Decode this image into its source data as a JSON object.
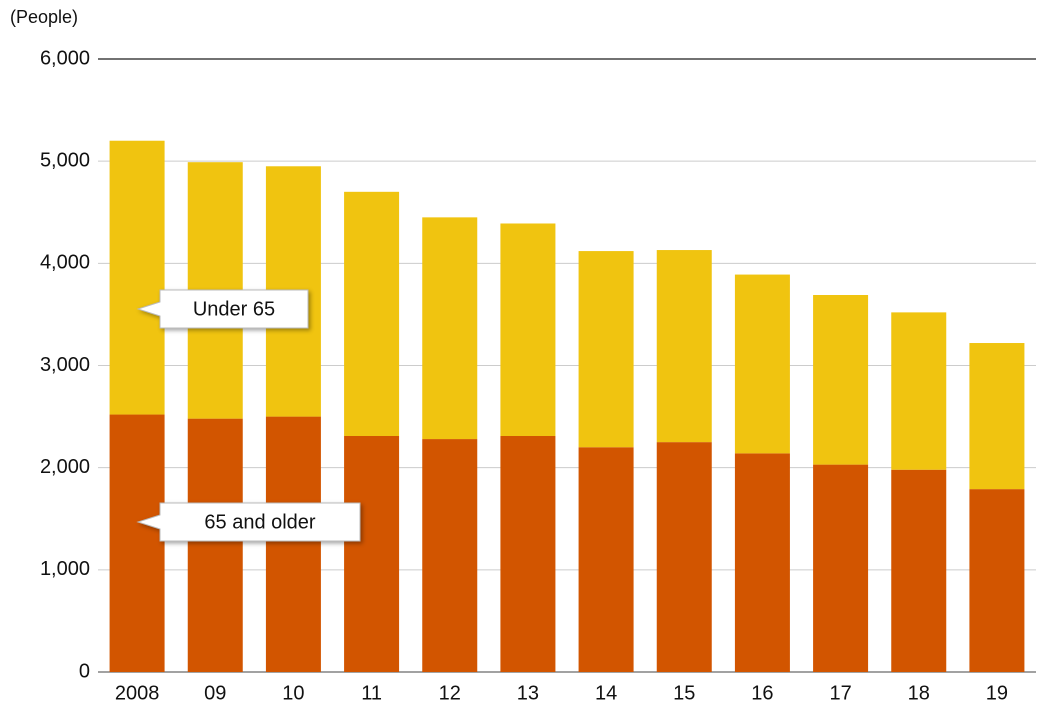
{
  "chart_data": {
    "type": "stacked_bar",
    "y_label": "(People)",
    "categories": [
      "2008",
      "09",
      "10",
      "11",
      "12",
      "13",
      "14",
      "15",
      "16",
      "17",
      "18",
      "19"
    ],
    "series": [
      {
        "name": "65 and older",
        "color": "#d25500",
        "values": [
          2520,
          2480,
          2500,
          2310,
          2280,
          2310,
          2200,
          2250,
          2140,
          2030,
          1980,
          1790
        ]
      },
      {
        "name": "Under 65",
        "color": "#f0c410",
        "values": [
          2680,
          2510,
          2450,
          2390,
          2170,
          2080,
          1920,
          1880,
          1750,
          1660,
          1540,
          1430
        ]
      }
    ],
    "ylim": [
      0,
      6000
    ],
    "yticks": [
      0,
      {
        "value": 1000,
        "label": "1,000"
      },
      {
        "value": 2000,
        "label": "2,000"
      },
      {
        "value": 3000,
        "label": "3,000"
      },
      {
        "value": 4000,
        "label": "4,000"
      },
      {
        "value": 5000,
        "label": "5,000"
      },
      {
        "value": 6000,
        "label": "6,000"
      }
    ],
    "grid": true
  }
}
